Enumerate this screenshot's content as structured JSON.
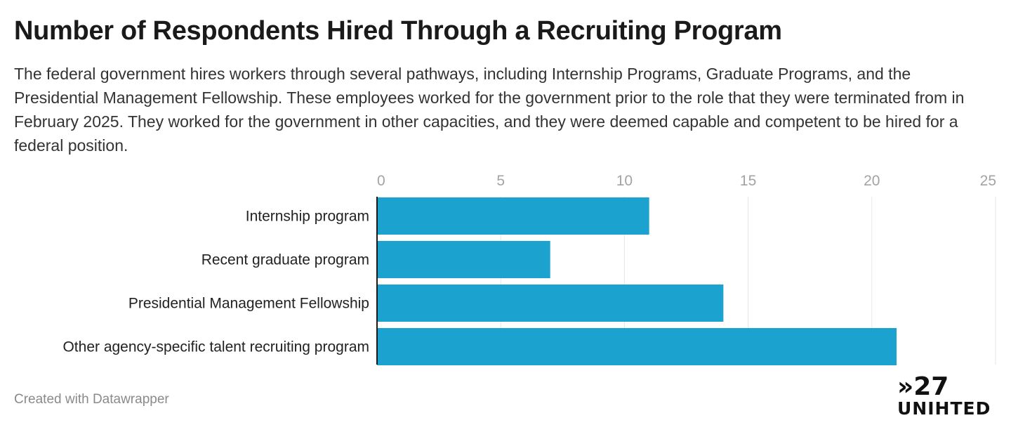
{
  "header": {
    "title": "Number of Respondents Hired Through a Recruiting Program",
    "subtitle": "The federal government hires workers through several pathways, including Internship Programs, Graduate Programs, and the Presidential Management Fellowship. These employees worked for the government prior to the role that they were terminated from in February 2025. They worked for the government in other capacities, and they were deemed capable and competent to be hired for a federal position."
  },
  "footer": {
    "credit": "Created with Datawrapper"
  },
  "logo": {
    "top": "»27",
    "bottom": "UNIHTED"
  },
  "chart_data": {
    "type": "bar",
    "orientation": "horizontal",
    "categories": [
      "Internship program",
      "Recent graduate program",
      "Presidential Management Fellowship",
      "Other agency-specific talent recruiting program"
    ],
    "values": [
      11,
      7,
      14,
      21
    ],
    "xlim": [
      0,
      25
    ],
    "xticks": [
      0,
      5,
      10,
      15,
      20,
      25
    ],
    "grid": true,
    "axis_position": "top",
    "bar_color": "#1ba2cf"
  }
}
